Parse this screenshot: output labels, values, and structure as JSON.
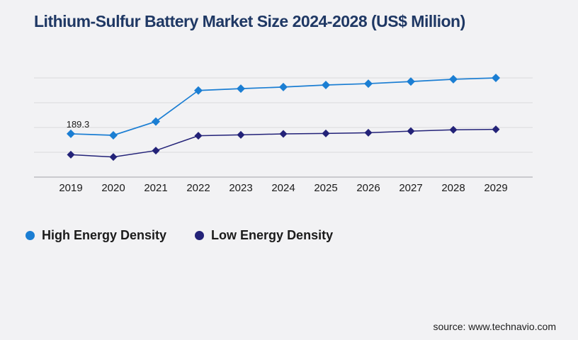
{
  "page": {
    "background_color": "#f2f2f4"
  },
  "header": {
    "title": "Lithium-Sulfur Battery Market Size 2024-2028 (US$ Million)",
    "title_color": "#1f3864"
  },
  "footer": {
    "source_text": "source: www.technavio.com"
  },
  "chart_data": {
    "type": "line",
    "title": "Lithium-Sulfur Battery Market Size 2024-2028 (US$ Million)",
    "x": [
      "2019",
      "2020",
      "2021",
      "2022",
      "2023",
      "2024",
      "2025",
      "2026",
      "2027",
      "2028",
      "2029"
    ],
    "series": [
      {
        "name": "High Energy Density",
        "color": "#1b7ed3",
        "marker": "diamond",
        "values": [
          189.3,
          183,
          243,
          379,
          387,
          394,
          403,
          409,
          418,
          428,
          434
        ]
      },
      {
        "name": "Low Energy Density",
        "color": "#232278",
        "marker": "diamond",
        "values": [
          98,
          88,
          116,
          181,
          185,
          189,
          191,
          194,
          201,
          207,
          209
        ]
      }
    ],
    "annotations": [
      {
        "series_index": 0,
        "x_index": 0,
        "text": "189.3"
      }
    ],
    "xlabel": "",
    "ylabel": "",
    "ylim": [
      0,
      450
    ],
    "y_axis_labels_visible": false,
    "grid": "horizontal",
    "gridline_color": "#dadadd",
    "axis_line_color": "#b2b3b7",
    "legend_position": "bottom-left"
  }
}
